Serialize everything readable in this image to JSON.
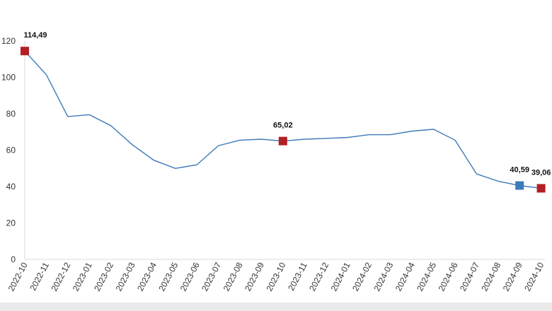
{
  "chart_data": {
    "type": "line",
    "title": "",
    "xlabel": "",
    "ylabel": "",
    "ylim": [
      0,
      120
    ],
    "yticks": [
      "0",
      "20",
      "40",
      "60",
      "80",
      "100",
      "120"
    ],
    "grid": false,
    "legend": "none",
    "categories": [
      "2022-10",
      "2022-11",
      "2022-12",
      "2023-01",
      "2023-02",
      "2023-03",
      "2023-04",
      "2023-05",
      "2023-06",
      "2023-07",
      "2023-08",
      "2023-09",
      "2023-10",
      "2023-11",
      "2023-12",
      "2024-01",
      "2024-02",
      "2024-03",
      "2024-04",
      "2024-05",
      "2024-06",
      "2024-07",
      "2024-08",
      "2024-09",
      "2024-10"
    ],
    "series": [
      {
        "color": "#3d7ab8",
        "values": [
          114.49,
          101.5,
          78.5,
          79.5,
          73.5,
          63.0,
          54.5,
          50.0,
          52.0,
          62.5,
          65.5,
          66.0,
          65.02,
          66.0,
          66.5,
          67.0,
          68.5,
          68.5,
          70.5,
          71.5,
          65.5,
          47.0,
          43.0,
          40.59,
          39.06
        ]
      }
    ],
    "highlights": [
      {
        "index": 0,
        "label": "114,49",
        "color": "#b21f24"
      },
      {
        "index": 12,
        "label": "65,02",
        "color": "#b21f24"
      },
      {
        "index": 23,
        "label": "40,59",
        "color": "#3d7ab8"
      },
      {
        "index": 24,
        "label": "39,06",
        "color": "#b21f24"
      }
    ]
  }
}
